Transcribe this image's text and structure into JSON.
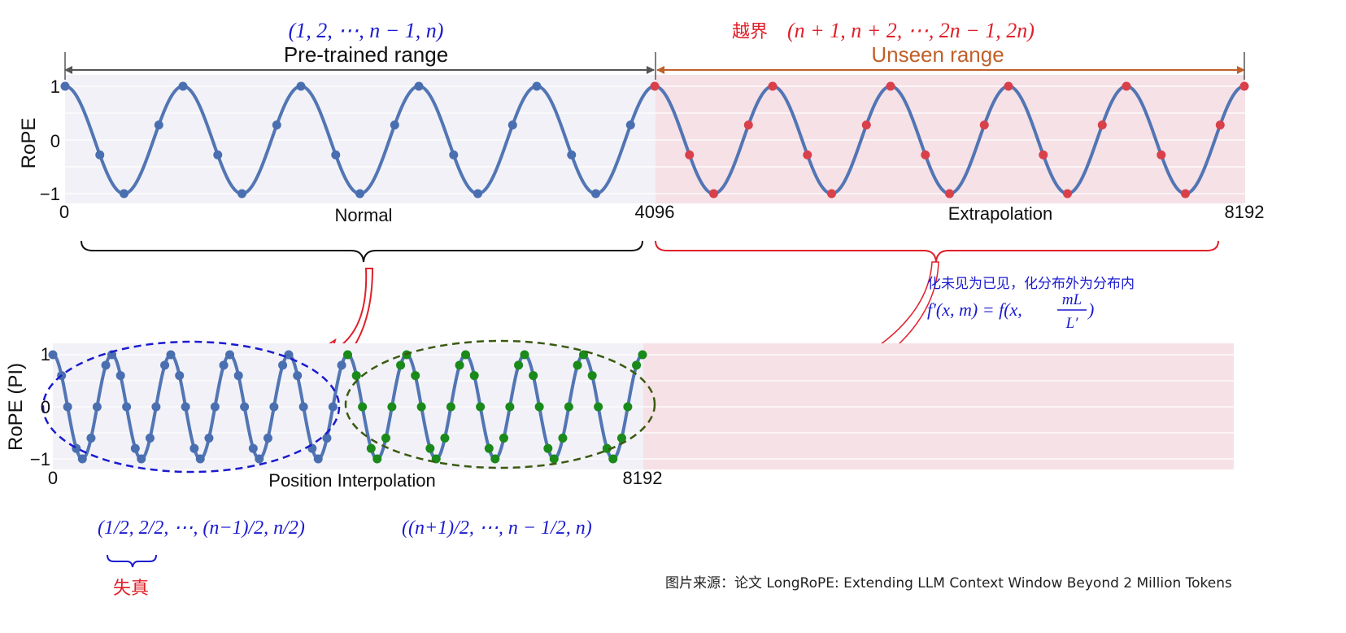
{
  "top": {
    "seq_formula": "(1, 2, ⋯, n − 1, n)",
    "pretrained_label": "Pre-trained range",
    "unseen_prefix_cn": "越界",
    "unseen_formula": "(n + 1, n + 2, ⋯, 2n − 1, 2n)",
    "unseen_label": "Unseen range",
    "ylabel": "RoPE",
    "yticks": [
      "1",
      "0",
      "−1"
    ],
    "xticks": [
      "0",
      "4096",
      "8192"
    ],
    "normal_label": "Normal",
    "extrap_label": "Extrapolation"
  },
  "middle": {
    "note_cn": "化未见为已见，化分布外为分布内",
    "formula_lhs": "f′(x, m) = f(x,",
    "formula_num": "mL",
    "formula_den": "L′",
    "formula_end": ")"
  },
  "bottom": {
    "ylabel": "RoPE (PI)",
    "yticks": [
      "1",
      "0",
      "−1"
    ],
    "xticks": [
      "0",
      "8192"
    ],
    "xlabel": "Position Interpolation",
    "frac_seq": "(1/2, 2/2, ⋯, (n−1)/2, n/2)",
    "half_seq": "((n+1)/2, ⋯, n − 1/2, n)",
    "distortion_cn": "失真"
  },
  "source_note": "图片来源：论文 LongRoPE: Extending LLM Context Window Beyond 2 Million Tokens",
  "chart_data": [
    {
      "type": "line",
      "title": "",
      "xlabel": "",
      "ylabel": "RoPE",
      "xlim": [
        0,
        8192
      ],
      "ylim": [
        -1,
        1
      ],
      "series": [
        {
          "name": "",
          "function": "cos",
          "cycles": 10
        }
      ],
      "regions": [
        {
          "range": [
            0,
            4096
          ],
          "label": "Pre-trained range",
          "color": "#f1f1f7"
        },
        {
          "range": [
            4096,
            8192
          ],
          "label": "Unseen range",
          "color": "#f5e1e6"
        }
      ],
      "points_per_cycle": 4
    },
    {
      "type": "line",
      "title": "",
      "xlabel": "Position Interpolation",
      "ylabel": "RoPE (PI)",
      "xlim": [
        0,
        8192
      ],
      "ylim": [
        -1,
        1
      ],
      "series": [
        {
          "name": "",
          "function": "cos",
          "cycles": 10
        }
      ],
      "points_per_cycle": 8
    }
  ],
  "colors": {
    "curve": "#5275b4",
    "blue_points": "#4a6fb0",
    "red_points": "#d9404a",
    "green_points": "#1a8a1a",
    "pretrained_bg": "#f1f1f7",
    "unseen_bg": "#f5e1e6",
    "blue_text": "#1a1ad0",
    "red_text": "#e0202a",
    "orange_text": "#c0602a"
  }
}
